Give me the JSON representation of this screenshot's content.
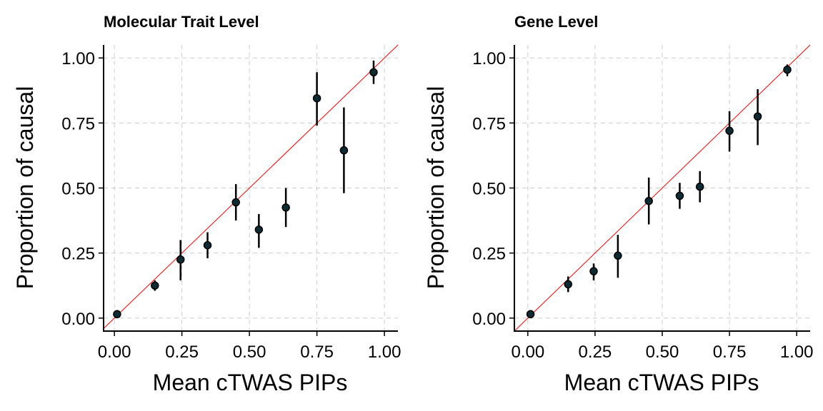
{
  "colors": {
    "reference_line": "#ff0000",
    "point_fill": "#0d2b33",
    "error_bar": "#000000",
    "grid": "#cccccc"
  },
  "chart_data": [
    {
      "type": "scatter",
      "title": "Molecular Trait Level",
      "xlabel": "Mean cTWAS PIPs",
      "ylabel": "Proportion of causal",
      "xlim": [
        -0.04,
        1.05
      ],
      "ylim": [
        -0.05,
        1.05
      ],
      "xticks": [
        0.0,
        0.25,
        0.5,
        0.75,
        1.0
      ],
      "xtick_labels": [
        "0.00",
        "0.25",
        "0.50",
        "0.75",
        "1.00"
      ],
      "yticks": [
        0.0,
        0.25,
        0.5,
        0.75,
        1.0
      ],
      "ytick_labels": [
        "0.00",
        "0.25",
        "0.50",
        "0.75",
        "1.00"
      ],
      "grid": true,
      "reference_line": "y = x",
      "points": [
        {
          "x": 0.01,
          "y": 0.015,
          "ymin": 0.01,
          "ymax": 0.02
        },
        {
          "x": 0.15,
          "y": 0.125,
          "ymin": 0.105,
          "ymax": 0.145
        },
        {
          "x": 0.245,
          "y": 0.225,
          "ymin": 0.145,
          "ymax": 0.3
        },
        {
          "x": 0.345,
          "y": 0.28,
          "ymin": 0.23,
          "ymax": 0.33
        },
        {
          "x": 0.45,
          "y": 0.445,
          "ymin": 0.375,
          "ymax": 0.515
        },
        {
          "x": 0.535,
          "y": 0.34,
          "ymin": 0.27,
          "ymax": 0.4
        },
        {
          "x": 0.635,
          "y": 0.425,
          "ymin": 0.35,
          "ymax": 0.5
        },
        {
          "x": 0.75,
          "y": 0.845,
          "ymin": 0.74,
          "ymax": 0.945
        },
        {
          "x": 0.85,
          "y": 0.645,
          "ymin": 0.48,
          "ymax": 0.81
        },
        {
          "x": 0.96,
          "y": 0.945,
          "ymin": 0.9,
          "ymax": 0.99
        }
      ]
    },
    {
      "type": "scatter",
      "title": "Gene Level",
      "xlabel": "Mean cTWAS PIPs",
      "ylabel": "Proportion of causal",
      "xlim": [
        -0.05,
        1.05
      ],
      "ylim": [
        -0.05,
        1.05
      ],
      "xticks": [
        0.0,
        0.25,
        0.5,
        0.75,
        1.0
      ],
      "xtick_labels": [
        "0.00",
        "0.25",
        "0.50",
        "0.75",
        "1.00"
      ],
      "yticks": [
        0.0,
        0.25,
        0.5,
        0.75,
        1.0
      ],
      "ytick_labels": [
        "0.00",
        "0.25",
        "0.50",
        "0.75",
        "1.00"
      ],
      "grid": true,
      "reference_line": "y = x",
      "points": [
        {
          "x": 0.01,
          "y": 0.015,
          "ymin": 0.01,
          "ymax": 0.02
        },
        {
          "x": 0.15,
          "y": 0.13,
          "ymin": 0.1,
          "ymax": 0.16
        },
        {
          "x": 0.245,
          "y": 0.18,
          "ymin": 0.145,
          "ymax": 0.21
        },
        {
          "x": 0.335,
          "y": 0.24,
          "ymin": 0.155,
          "ymax": 0.32
        },
        {
          "x": 0.45,
          "y": 0.45,
          "ymin": 0.36,
          "ymax": 0.54
        },
        {
          "x": 0.565,
          "y": 0.47,
          "ymin": 0.42,
          "ymax": 0.52
        },
        {
          "x": 0.64,
          "y": 0.505,
          "ymin": 0.445,
          "ymax": 0.565
        },
        {
          "x": 0.75,
          "y": 0.72,
          "ymin": 0.64,
          "ymax": 0.795
        },
        {
          "x": 0.855,
          "y": 0.775,
          "ymin": 0.665,
          "ymax": 0.88
        },
        {
          "x": 0.965,
          "y": 0.955,
          "ymin": 0.93,
          "ymax": 0.975
        }
      ]
    }
  ]
}
